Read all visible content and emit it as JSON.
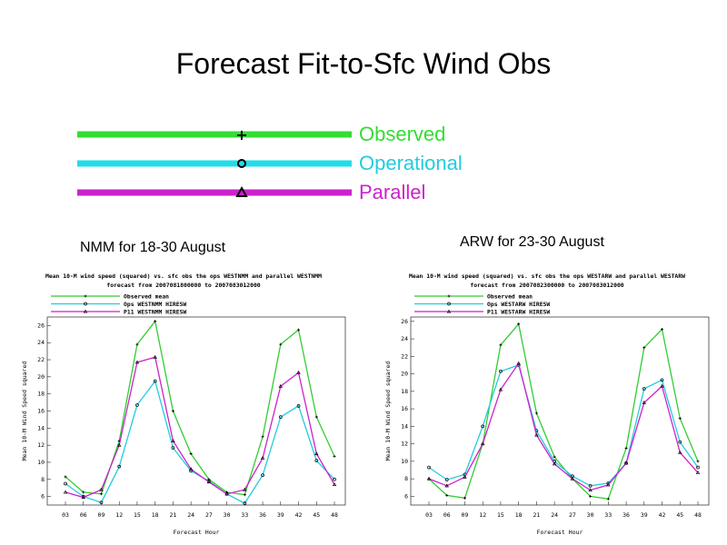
{
  "title": "Forecast Fit-to-Sfc Wind Obs",
  "legend": [
    {
      "label": "Observed",
      "color": "#33dd33",
      "marker": "+"
    },
    {
      "label": "Operational",
      "color": "#22dde8",
      "marker": "o"
    },
    {
      "label": "Parallel",
      "color": "#cc22cc",
      "marker": "triangle"
    }
  ],
  "subtitles": {
    "left": "NMM for 18-30 August",
    "right": "ARW for 23-30 August"
  },
  "chart_data": [
    {
      "type": "line",
      "title": "Mean 10-M wind speed (squared) vs. sfc obs the ops WESTNMM and parallel WESTNMM",
      "subtitle": "forecast from 2007081800000 to 2007083012000",
      "legend_entries": [
        "Observed mean",
        "Ops WESTNMM HIRESW",
        "P11 WESTNMM HIRESW"
      ],
      "xlabel": "Forecast Hour",
      "ylabel": "Mean 10-M Wind Speed squared",
      "categories": [
        "03",
        "06",
        "09",
        "12",
        "15",
        "18",
        "21",
        "24",
        "27",
        "30",
        "33",
        "36",
        "39",
        "42",
        "45",
        "48"
      ],
      "ylim": [
        5,
        27
      ],
      "yticks": [
        6,
        8,
        10,
        12,
        14,
        16,
        18,
        20,
        22,
        24,
        26
      ],
      "series": [
        {
          "name": "Observed mean",
          "color": "#33cc33",
          "values": [
            8.3,
            6.5,
            6.3,
            12.5,
            23.8,
            26.5,
            16.0,
            11.0,
            8.0,
            6.5,
            6.2,
            13.0,
            23.8,
            25.5,
            15.3,
            10.7
          ]
        },
        {
          "name": "Ops WESTNMM HIRESW",
          "color": "#22ccdd",
          "values": [
            7.5,
            6.0,
            5.3,
            9.5,
            16.7,
            19.5,
            11.7,
            9.0,
            7.8,
            6.3,
            5.2,
            8.5,
            15.3,
            16.6,
            10.2,
            8.0
          ]
        },
        {
          "name": "P11 WESTNMM HIRESW",
          "color": "#cc22cc",
          "values": [
            6.5,
            5.9,
            6.8,
            12.0,
            21.7,
            22.3,
            12.5,
            9.2,
            7.7,
            6.3,
            6.8,
            10.5,
            18.9,
            20.5,
            11.0,
            7.4
          ]
        }
      ]
    },
    {
      "type": "line",
      "title": "Mean 10-M wind speed (squared) vs. sfc obs the ops WESTARW and parallel WESTARW",
      "subtitle": "forecast from 2007082300000 to 2007083012000",
      "legend_entries": [
        "Observed mean",
        "Ops WESTARW HIRESW",
        "P11 WESTARW HIRESW"
      ],
      "xlabel": "Forecast Hour",
      "ylabel": "Mean 10-M Wind Speed squared",
      "categories": [
        "03",
        "06",
        "09",
        "12",
        "15",
        "18",
        "21",
        "24",
        "27",
        "30",
        "33",
        "36",
        "39",
        "42",
        "45",
        "48"
      ],
      "ylim": [
        5,
        26.5
      ],
      "yticks": [
        6,
        8,
        10,
        12,
        14,
        16,
        18,
        20,
        22,
        24,
        26
      ],
      "series": [
        {
          "name": "Observed mean",
          "color": "#33cc33",
          "values": [
            8.0,
            6.1,
            5.8,
            12.0,
            23.3,
            25.7,
            15.5,
            10.5,
            8.0,
            6.0,
            5.7,
            11.5,
            23.0,
            25.1,
            14.9,
            10.0
          ]
        },
        {
          "name": "Ops WESTARW HIRESW",
          "color": "#22ccdd",
          "values": [
            9.3,
            7.9,
            8.5,
            14.0,
            20.3,
            21.0,
            13.5,
            10.0,
            8.3,
            7.2,
            7.5,
            9.8,
            18.3,
            19.3,
            12.2,
            9.3
          ]
        },
        {
          "name": "P11 WESTARW HIRESW",
          "color": "#cc22cc",
          "values": [
            8.0,
            7.2,
            8.2,
            12.0,
            18.2,
            21.2,
            13.0,
            9.7,
            8.0,
            6.7,
            7.3,
            9.8,
            16.7,
            18.6,
            11.0,
            8.7
          ]
        }
      ]
    }
  ]
}
